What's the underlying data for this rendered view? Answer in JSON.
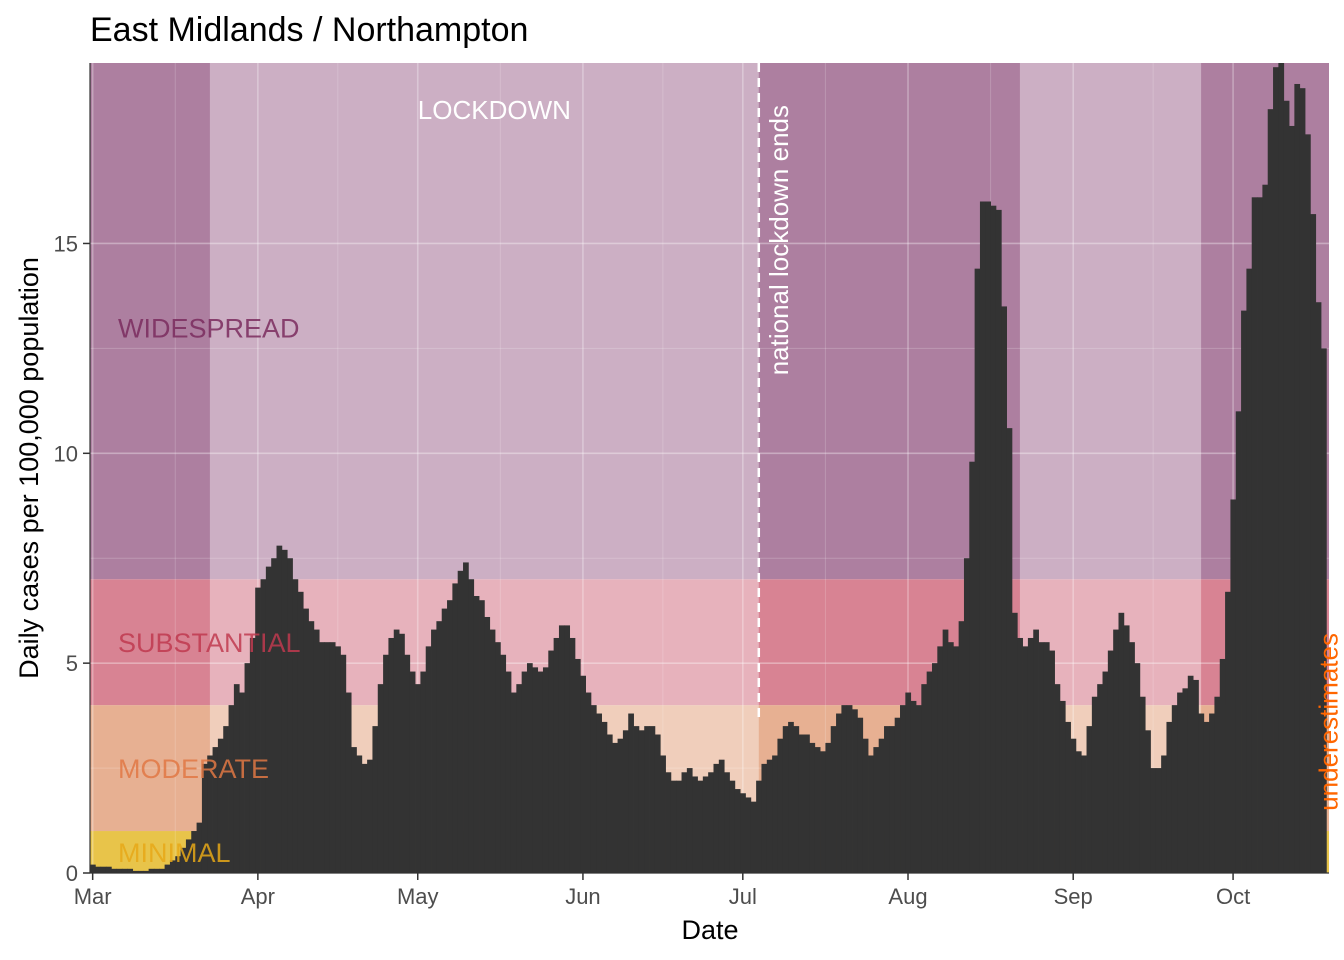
{
  "chart_data": {
    "type": "bar",
    "title": "East Midlands / Northampton",
    "xlabel": "Date",
    "ylabel": "Daily cases per 100,000 population",
    "x_start": "2020-03-01",
    "x_end": "2020-10-19",
    "ylim": [
      0,
      19.3
    ],
    "grid": true,
    "x_ticks": [
      {
        "date": "2020-03-01",
        "label": "Mar"
      },
      {
        "date": "2020-04-01",
        "label": "Apr"
      },
      {
        "date": "2020-05-01",
        "label": "May"
      },
      {
        "date": "2020-06-01",
        "label": "Jun"
      },
      {
        "date": "2020-07-01",
        "label": "Jul"
      },
      {
        "date": "2020-08-01",
        "label": "Aug"
      },
      {
        "date": "2020-09-01",
        "label": "Sep"
      },
      {
        "date": "2020-10-01",
        "label": "Oct"
      }
    ],
    "y_ticks": [
      {
        "value": 0,
        "label": "0"
      },
      {
        "value": 5,
        "label": "5"
      },
      {
        "value": 10,
        "label": "10"
      },
      {
        "value": 15,
        "label": "15"
      }
    ],
    "bands": [
      {
        "label": "MINIMAL",
        "from": 0,
        "to": 1,
        "color": "#e8c44a",
        "text_color": "#e6a817",
        "label_y": 0.5
      },
      {
        "label": "MODERATE",
        "from": 1,
        "to": 4,
        "color": "#e7b092",
        "text_color": "#e07844",
        "label_y": 2.5
      },
      {
        "label": "SUBSTANTIAL",
        "from": 4,
        "to": 7,
        "color": "#d88393",
        "text_color": "#c0394f",
        "label_y": 5.5
      },
      {
        "label": "WIDESPREAD",
        "from": 7,
        "to": 19.3,
        "color": "#ad7fa0",
        "text_color": "#7a2c5e",
        "label_y": 13
      }
    ],
    "lockdown_periods": [
      {
        "label": "LOCKDOWN",
        "start": "2020-03-23",
        "end": "2020-07-04"
      },
      {
        "label": "",
        "start": "2020-08-22",
        "end": "2020-09-25"
      }
    ],
    "annotations": [
      {
        "text": "LOCKDOWN",
        "date": "2020-05-15",
        "value": 18.2,
        "color": "#ffffff"
      },
      {
        "text": "national lockdown ends",
        "date": "2020-07-04",
        "color": "#ffffff",
        "style": "dashed-vline"
      },
      {
        "text": "underestimates",
        "date": "2020-10-18",
        "value": 3.6,
        "color": "#ff6600",
        "style": "vertical"
      }
    ],
    "bar_color": "#333333",
    "series": [
      {
        "values": [
          0.2,
          0.15,
          0.15,
          0.15,
          0.1,
          0.1,
          0.1,
          0.1,
          0.05,
          0.05,
          0.05,
          0.1,
          0.1,
          0.1,
          0.2,
          0.3,
          0.4,
          0.6,
          0.8,
          1.0,
          1.2,
          2.6,
          2.8,
          3.0,
          3.2,
          3.5,
          4.0,
          4.5,
          4.3,
          5.0,
          5.6,
          6.8,
          7.0,
          7.3,
          7.5,
          7.8,
          7.7,
          7.5,
          7.0,
          6.7,
          6.3,
          6.0,
          5.8,
          5.5,
          5.5,
          5.5,
          5.4,
          5.2,
          4.3,
          3.0,
          2.8,
          2.6,
          2.7,
          3.5,
          4.5,
          5.2,
          5.6,
          5.8,
          5.7,
          5.2,
          4.8,
          4.5,
          4.8,
          5.4,
          5.8,
          6.0,
          6.3,
          6.5,
          6.9,
          7.2,
          7.4,
          7.0,
          6.6,
          6.5,
          6.1,
          5.8,
          5.5,
          5.2,
          4.8,
          4.3,
          4.5,
          4.8,
          5.0,
          4.9,
          4.8,
          4.9,
          5.3,
          5.6,
          5.9,
          5.9,
          5.6,
          5.1,
          4.7,
          4.3,
          4.0,
          3.8,
          3.6,
          3.3,
          3.1,
          3.2,
          3.4,
          3.8,
          3.5,
          3.4,
          3.5,
          3.5,
          3.3,
          2.8,
          2.4,
          2.2,
          2.2,
          2.4,
          2.5,
          2.3,
          2.2,
          2.3,
          2.4,
          2.6,
          2.7,
          2.4,
          2.2,
          2.0,
          1.9,
          1.8,
          1.7,
          2.2,
          2.6,
          2.7,
          2.8,
          3.2,
          3.5,
          3.6,
          3.5,
          3.3,
          3.3,
          3.1,
          3.0,
          2.9,
          3.1,
          3.5,
          3.8,
          4.0,
          4.0,
          3.9,
          3.7,
          3.2,
          2.8,
          3.0,
          3.2,
          3.5,
          3.5,
          3.7,
          4.0,
          4.3,
          4.1,
          4.0,
          4.5,
          4.8,
          5.0,
          5.4,
          5.8,
          5.5,
          5.4,
          6.0,
          7.5,
          9.8,
          14.4,
          16.0,
          16.0,
          15.9,
          15.8,
          13.5,
          10.6,
          6.2,
          5.6,
          5.4,
          5.6,
          5.8,
          5.5,
          5.5,
          5.3,
          4.5,
          4.1,
          3.6,
          3.2,
          2.9,
          2.8,
          3.5,
          4.2,
          4.5,
          4.8,
          5.3,
          5.8,
          6.2,
          5.9,
          5.5,
          5.0,
          4.2,
          3.4,
          2.5,
          2.5,
          2.8,
          3.6,
          4.0,
          4.3,
          4.4,
          4.7,
          4.6,
          3.8,
          3.6,
          3.8,
          4.2,
          5.1,
          6.7,
          8.9,
          11.0,
          13.4,
          14.4,
          16.1,
          16.1,
          16.4,
          18.2,
          19.2,
          19.3,
          18.4,
          17.8,
          18.8,
          18.7,
          17.6,
          15.7,
          13.6,
          12.5
        ]
      }
    ]
  }
}
